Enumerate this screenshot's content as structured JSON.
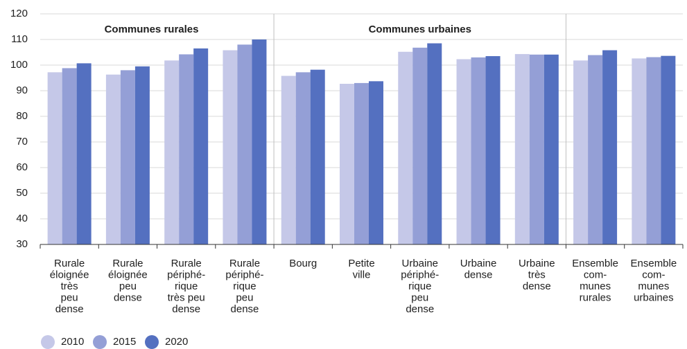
{
  "chart_data": {
    "type": "bar",
    "annotations": [
      "Communes rurales",
      "Communes urbaines"
    ],
    "categories": [
      [
        "Rurale",
        "éloignée",
        "très",
        "peu",
        "dense"
      ],
      [
        "Rurale",
        "éloignée",
        "peu",
        "dense"
      ],
      [
        "Rurale",
        "périphé-",
        "rique",
        "très peu",
        "dense"
      ],
      [
        "Rurale",
        "périphé-",
        "rique",
        "peu",
        "dense"
      ],
      [
        "Bourg"
      ],
      [
        "Petite",
        "ville"
      ],
      [
        "Urbaine",
        "périphé-",
        "rique",
        "peu",
        "dense"
      ],
      [
        "Urbaine",
        "dense"
      ],
      [
        "Urbaine",
        "très",
        "dense"
      ],
      [
        "Ensemble",
        "com-",
        "munes",
        "rurales"
      ],
      [
        "Ensemble",
        "com-",
        "munes",
        "urbaines"
      ]
    ],
    "series": [
      {
        "name": "2010",
        "color": "#c5c8e8",
        "values": [
          97.2,
          96.3,
          101.8,
          105.8,
          95.8,
          92.7,
          105.2,
          102.3,
          104.3,
          101.8,
          102.6
        ]
      },
      {
        "name": "2015",
        "color": "#949fd6",
        "values": [
          98.8,
          98.0,
          104.2,
          108.0,
          97.2,
          93.0,
          106.8,
          103.0,
          104.1,
          103.9,
          103.1
        ]
      },
      {
        "name": "2020",
        "color": "#5470c0",
        "values": [
          100.7,
          99.5,
          106.5,
          110.0,
          98.2,
          93.7,
          108.5,
          103.5,
          104.1,
          105.8,
          103.6
        ]
      }
    ],
    "ylim": [
      30,
      120
    ],
    "yticks": [
      30,
      40,
      50,
      60,
      70,
      80,
      90,
      100,
      110,
      120
    ],
    "grid": true
  }
}
